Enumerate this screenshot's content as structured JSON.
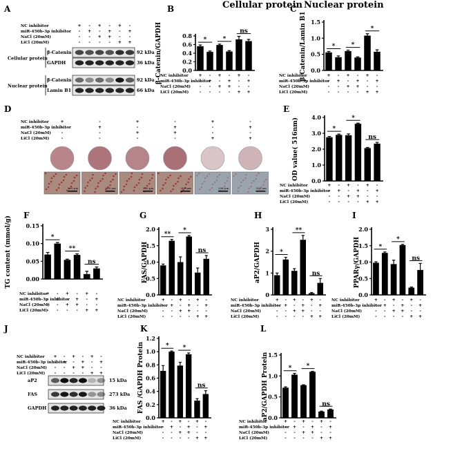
{
  "panels": {
    "A": {
      "letter": "A",
      "conditions": [
        "NC inhibitor",
        "miR-450b-3p inhibitor",
        "NaCl (20mM)",
        "LiCl (20mM)"
      ],
      "signs": [
        [
          "+",
          "-",
          "+",
          "-",
          "+",
          "-"
        ],
        [
          "-",
          "+",
          "-",
          "+",
          "-",
          "+"
        ],
        [
          "-",
          "-",
          "+",
          "+",
          "-",
          "-"
        ],
        [
          "-",
          "-",
          "-",
          "-",
          "+",
          "+"
        ]
      ],
      "groups": [
        {
          "label": "Cellular protein",
          "bands": [
            {
              "name": "β-Catenin",
              "kda": "92 kDa",
              "intensity": [
                0.7,
                0.65,
                0.7,
                0.65,
                0.8,
                0.75
              ]
            },
            {
              "name": "GAPDH",
              "kda": "36 kDa",
              "intensity": [
                0.85,
                0.85,
                0.85,
                0.85,
                0.85,
                0.85
              ]
            }
          ]
        },
        {
          "label": "Nuclear protein",
          "bands": [
            {
              "name": "β-Catenin",
              "kda": "92 kDa",
              "intensity": [
                0.55,
                0.4,
                0.55,
                0.4,
                0.9,
                0.6
              ]
            },
            {
              "name": "Lamin B1",
              "kda": "66 kDa",
              "intensity": [
                0.85,
                0.85,
                0.85,
                0.85,
                0.85,
                0.85
              ]
            }
          ]
        }
      ]
    },
    "D": {
      "letter": "D",
      "conditions": [
        "NC inhibitor",
        "miR-450b-3p inhibitor",
        "NaCl (20mM)",
        "LiCl (20mM)"
      ],
      "signs": [
        [
          "+",
          "-",
          "+",
          "-",
          "+",
          "-"
        ],
        [
          "-",
          "+",
          "-",
          "+",
          "-",
          "+"
        ],
        [
          "-",
          "-",
          "+",
          "+",
          "-",
          "-"
        ],
        [
          "-",
          "-",
          "-",
          "-",
          "+",
          "+"
        ]
      ],
      "well_colors": [
        "#b8868a",
        "#ad7479",
        "#b58589",
        "#a97075",
        "#d8c5c7",
        "#ceb4b7"
      ],
      "scale_label": "200 μm"
    },
    "J": {
      "letter": "J",
      "conditions": [
        "NC inhibitor",
        "miR-450b-3p inhibitor",
        "NaCl (20mM)",
        "LiCl (20mM)"
      ],
      "signs": [
        [
          "+",
          "-",
          "+",
          "-",
          "+",
          "-"
        ],
        [
          "-",
          "+",
          "-",
          "+",
          "-",
          "+"
        ],
        [
          "-",
          "-",
          "+",
          "+",
          "-",
          "-"
        ],
        [
          "-",
          "-",
          "-",
          "-",
          "+",
          "+"
        ]
      ],
      "bands": [
        {
          "name": "aP2",
          "kda": "15 kDa",
          "intensity": [
            0.6,
            0.95,
            0.85,
            0.95,
            0.2,
            0.35
          ]
        },
        {
          "name": "FAS",
          "kda": "273 kDa",
          "intensity": [
            0.75,
            0.9,
            0.8,
            0.9,
            0.35,
            0.4
          ]
        },
        {
          "name": "GAPDH",
          "kda": "36 kDa",
          "intensity": [
            0.85,
            0.85,
            0.85,
            0.85,
            0.85,
            0.85
          ]
        }
      ]
    }
  },
  "chart_data": [
    {
      "panel": "B",
      "type": "bar",
      "title": "Cellular protein",
      "ylabel": "β-Catenin/GAPDH",
      "ylim": [
        0,
        0.8
      ],
      "yticks": [
        "0.0",
        "0.2",
        "0.4",
        "0.6",
        "0.8"
      ],
      "values": [
        0.56,
        0.43,
        0.59,
        0.44,
        0.72,
        0.68
      ],
      "errors": [
        0.03,
        0.02,
        0.02,
        0.02,
        0.07,
        0.04
      ],
      "sig": [
        {
          "from": 0,
          "to": 1,
          "label": "*"
        },
        {
          "from": 2,
          "to": 3,
          "label": "*"
        },
        {
          "from": 4,
          "to": 5,
          "label": "ns"
        }
      ],
      "conditions": [
        "NC inhibitor",
        "miR-450b-3p inhibitor",
        "NaCl (20mM)",
        "LiCl (20mM)"
      ],
      "signs": [
        [
          "+",
          "-",
          "+",
          "-",
          "+",
          "-"
        ],
        [
          "-",
          "+",
          "-",
          "+",
          "-",
          "+"
        ],
        [
          "-",
          "-",
          "+",
          "+",
          "-",
          "-"
        ],
        [
          "-",
          "-",
          "-",
          "-",
          "+",
          "+"
        ]
      ]
    },
    {
      "panel": "C",
      "type": "bar",
      "title": "Nuclear protein",
      "ylabel": "β-Catenin/Lamin B1",
      "ylim": [
        0,
        1.5
      ],
      "yticks": [
        "0.0",
        "0.5",
        "1.0",
        "1.5"
      ],
      "values": [
        0.56,
        0.41,
        0.6,
        0.4,
        1.08,
        0.58
      ],
      "errors": [
        0.03,
        0.04,
        0.03,
        0.02,
        0.06,
        0.06
      ],
      "sig": [
        {
          "from": 0,
          "to": 1,
          "label": "*"
        },
        {
          "from": 2,
          "to": 3,
          "label": "*"
        },
        {
          "from": 4,
          "to": 5,
          "label": "*"
        }
      ],
      "conditions": [
        "NC inhibitor",
        "miR-450b-3p inhibitor",
        "NaCl (20mM)",
        "LiCl (20mM)"
      ],
      "signs": [
        [
          "+",
          "-",
          "+",
          "-",
          "+",
          "-"
        ],
        [
          "-",
          "+",
          "-",
          "+",
          "-",
          "+"
        ],
        [
          "-",
          "-",
          "+",
          "+",
          "-",
          "-"
        ],
        [
          "-",
          "-",
          "-",
          "-",
          "+",
          "+"
        ]
      ]
    },
    {
      "panel": "E",
      "type": "bar",
      "title": "",
      "ylabel": "OD value( 516nm)",
      "ylim": [
        0,
        4
      ],
      "yticks": [
        "0.0",
        "1.0",
        "2.0",
        "3.0",
        "4.0"
      ],
      "values": [
        2.75,
        2.9,
        2.88,
        3.6,
        2.07,
        2.35
      ],
      "errors": [
        0.05,
        0.05,
        0.08,
        0.04,
        0.04,
        0.08
      ],
      "sig": [
        {
          "from": 0,
          "to": 1,
          "label": "*"
        },
        {
          "from": 2,
          "to": 3,
          "label": "*"
        },
        {
          "from": 4,
          "to": 5,
          "label": "ns"
        }
      ],
      "conditions": [
        "NC inhibitor",
        "miR-450b-3p inhibitor",
        "NaCl (20mM)",
        "LiCl (20mM)"
      ],
      "signs": [
        [
          "+",
          "-",
          "+",
          "-",
          "+",
          "-"
        ],
        [
          "-",
          "+",
          "-",
          "+",
          "-",
          "+"
        ],
        [
          "-",
          "-",
          "+",
          "+",
          "-",
          "-"
        ],
        [
          "-",
          "-",
          "-",
          "-",
          "+",
          "+"
        ]
      ]
    },
    {
      "panel": "F",
      "type": "bar",
      "title": "",
      "ylabel": "TG content (mmol/g)",
      "ylim": [
        0,
        0.15
      ],
      "yticks": [
        "0.00",
        "0.05",
        "0.10",
        "0.15"
      ],
      "values": [
        0.069,
        0.1,
        0.054,
        0.068,
        0.014,
        0.03
      ],
      "errors": [
        0.006,
        0.003,
        0.002,
        0.003,
        0.008,
        0.004
      ],
      "sig": [
        {
          "from": 0,
          "to": 1,
          "label": "*"
        },
        {
          "from": 2,
          "to": 3,
          "label": "**"
        },
        {
          "from": 4,
          "to": 5,
          "label": "ns"
        }
      ],
      "conditions": [
        "NC inhibitor",
        "miR-450b-3p inhibitor",
        "NaCl (20mM)",
        "LiCl (20mM)"
      ],
      "signs": [
        [
          "+",
          "-",
          "+",
          "-",
          "+",
          "-"
        ],
        [
          "-",
          "+",
          "-",
          "+",
          "-",
          "+"
        ],
        [
          "-",
          "-",
          "+",
          "+",
          "-",
          "-"
        ],
        [
          "-",
          "-",
          "-",
          "-",
          "+",
          "+"
        ]
      ]
    },
    {
      "panel": "G",
      "type": "bar",
      "title": "",
      "ylabel": "FAS/GAPDH",
      "ylim": [
        0,
        2
      ],
      "yticks": [
        "0.0",
        "0.5",
        "1.0",
        "1.5",
        "2.0"
      ],
      "values": [
        0.9,
        1.65,
        1.0,
        1.78,
        0.68,
        1.1
      ],
      "errors": [
        0.04,
        0.04,
        0.16,
        0.03,
        0.14,
        0.1
      ],
      "sig": [
        {
          "from": 0,
          "to": 1,
          "label": "**"
        },
        {
          "from": 2,
          "to": 3,
          "label": "*"
        },
        {
          "from": 4,
          "to": 5,
          "label": "ns"
        }
      ],
      "conditions": [
        "NC inhibitor",
        "miR-450b-3p inhibitor",
        "NaCl (20mM)",
        "LiCl (20mM)"
      ],
      "signs": [
        [
          "+",
          "-",
          "+",
          "-",
          "+",
          "-"
        ],
        [
          "-",
          "+",
          "-",
          "+",
          "-",
          "+"
        ],
        [
          "-",
          "-",
          "+",
          "+",
          "-",
          "-"
        ],
        [
          "-",
          "-",
          "-",
          "-",
          "+",
          "+"
        ]
      ]
    },
    {
      "panel": "H",
      "type": "bar",
      "title": "",
      "ylabel": "aP2/GAPDH",
      "ylim": [
        0,
        3
      ],
      "yticks": [
        "0",
        "1",
        "2",
        "3"
      ],
      "values": [
        0.9,
        1.62,
        1.1,
        2.52,
        0.08,
        0.55
      ],
      "errors": [
        0.1,
        0.1,
        0.1,
        0.2,
        0.03,
        0.2
      ],
      "sig": [
        {
          "from": 0,
          "to": 1,
          "label": "*"
        },
        {
          "from": 2,
          "to": 3,
          "label": "**"
        },
        {
          "from": 4,
          "to": 5,
          "label": "ns"
        }
      ],
      "conditions": [
        "NC inhibitor",
        "miR-450b-3p inhibitor",
        "NaCl (20mM)",
        "LiCl (20mM)"
      ],
      "signs": [
        [
          "+",
          "-",
          "+",
          "-",
          "+",
          "-"
        ],
        [
          "-",
          "+",
          "-",
          "+",
          "-",
          "+"
        ],
        [
          "-",
          "-",
          "+",
          "+",
          "-",
          "-"
        ],
        [
          "-",
          "-",
          "-",
          "-",
          "+",
          "+"
        ]
      ]
    },
    {
      "panel": "I",
      "type": "bar",
      "title": "",
      "ylabel": "PPARγ/GAPDH",
      "ylim": [
        0,
        2
      ],
      "yticks": [
        "0.0",
        "0.5",
        "1.0",
        "1.5",
        "2.0"
      ],
      "values": [
        0.98,
        1.28,
        0.94,
        1.52,
        0.22,
        0.76
      ],
      "errors": [
        0.03,
        0.03,
        0.12,
        0.02,
        0.02,
        0.2
      ],
      "sig": [
        {
          "from": 0,
          "to": 1,
          "label": "*"
        },
        {
          "from": 2,
          "to": 3,
          "label": "*"
        },
        {
          "from": 4,
          "to": 5,
          "label": "ns"
        }
      ],
      "conditions": [
        "NC inhibitor",
        "miR-450b-3p inhibitor",
        "NaCl (20mM)",
        "LiCl (20mM)"
      ],
      "signs": [
        [
          "+",
          "-",
          "+",
          "-",
          "+",
          "-"
        ],
        [
          "-",
          "+",
          "-",
          "+",
          "-",
          "+"
        ],
        [
          "-",
          "-",
          "+",
          "+",
          "-",
          "-"
        ],
        [
          "-",
          "-",
          "-",
          "-",
          "+",
          "+"
        ]
      ]
    },
    {
      "panel": "K",
      "type": "bar",
      "title": "",
      "ylabel": "FAS /GAPDH Protein",
      "ylim": [
        0,
        1.2
      ],
      "yticks": [
        "0.0",
        "0.2",
        "0.4",
        "0.6",
        "0.8",
        "1.0",
        "1.2"
      ],
      "values": [
        0.71,
        1.0,
        0.79,
        0.96,
        0.26,
        0.36
      ],
      "errors": [
        0.08,
        0.01,
        0.05,
        0.02,
        0.03,
        0.05
      ],
      "sig": [
        {
          "from": 0,
          "to": 1,
          "label": "*"
        },
        {
          "from": 2,
          "to": 3,
          "label": "*"
        },
        {
          "from": 4,
          "to": 5,
          "label": "ns"
        }
      ],
      "conditions": [
        "NC inhibitor",
        "miR-450b-3p inhibitor",
        "NaCl (20mM)",
        "LiCl (20mM)"
      ],
      "signs": [
        [
          "+",
          "-",
          "+",
          "-",
          "+",
          "-"
        ],
        [
          "-",
          "+",
          "-",
          "+",
          "-",
          "+"
        ],
        [
          "-",
          "-",
          "+",
          "+",
          "-",
          "-"
        ],
        [
          "-",
          "-",
          "-",
          "-",
          "+",
          "+"
        ]
      ]
    },
    {
      "panel": "L",
      "type": "bar",
      "title": "",
      "ylabel": "aP2/GAPDH Protein",
      "ylim": [
        0,
        1.5
      ],
      "yticks": [
        "0.0",
        "0.5",
        "1.0",
        "1.5"
      ],
      "values": [
        0.72,
        1.03,
        0.78,
        1.1,
        0.15,
        0.2
      ],
      "errors": [
        0.02,
        0.03,
        0.01,
        0.01,
        0.01,
        0.01
      ],
      "sig": [
        {
          "from": 0,
          "to": 1,
          "label": "*"
        },
        {
          "from": 2,
          "to": 3,
          "label": "*"
        },
        {
          "from": 4,
          "to": 5,
          "label": "ns"
        }
      ],
      "conditions": [
        "NC inhibitor",
        "miR-450b-3p inhibitor",
        "NaCl (20mM)",
        "LiCl (20mM)"
      ],
      "signs": [
        [
          "+",
          "-",
          "+",
          "-",
          "+",
          "-"
        ],
        [
          "-",
          "+",
          "-",
          "+",
          "-",
          "+"
        ],
        [
          "-",
          "-",
          "+",
          "+",
          "-",
          "-"
        ],
        [
          "-",
          "-",
          "-",
          "-",
          "+",
          "+"
        ]
      ]
    }
  ]
}
